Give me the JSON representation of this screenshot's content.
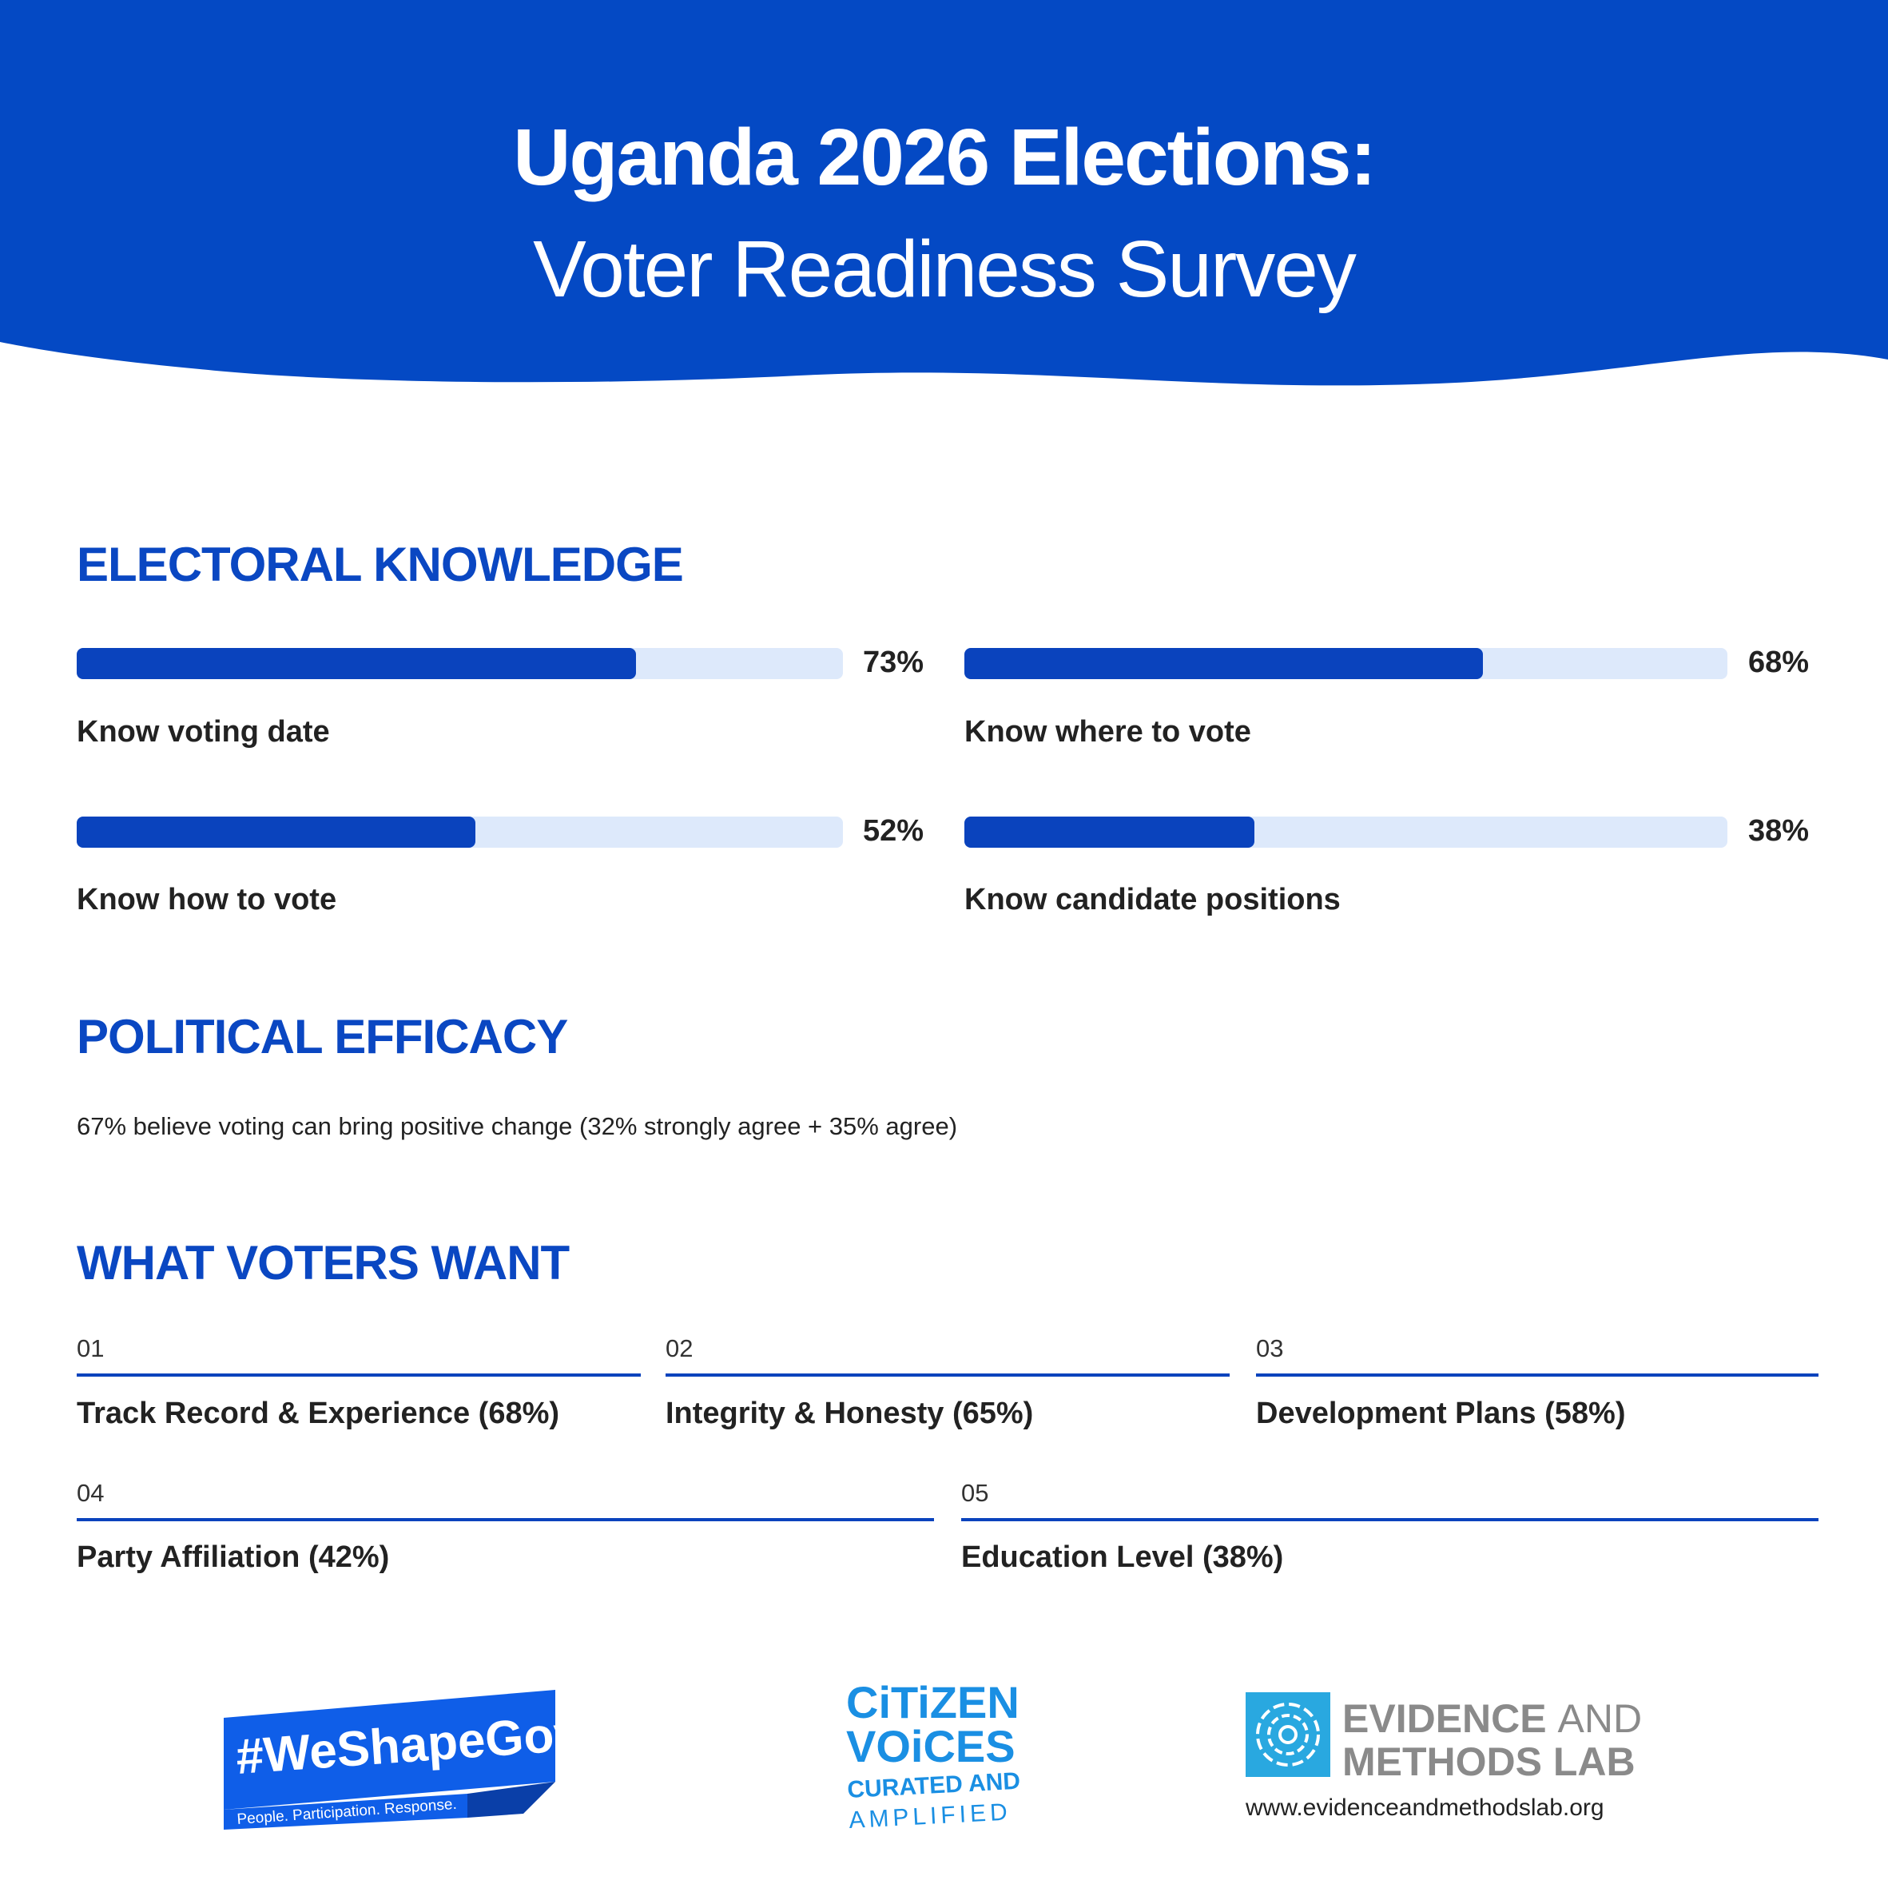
{
  "header": {
    "title": "Uganda 2026 Elections:",
    "subtitle": "Voter Readiness Survey"
  },
  "knowledge": {
    "heading": "ELECTORAL KNOWLEDGE",
    "items": [
      {
        "label": "Know voting date",
        "value": 73,
        "value_label": "73%"
      },
      {
        "label": "Know where to vote",
        "value": 68,
        "value_label": "68%"
      },
      {
        "label": "Know how to vote",
        "value": 52,
        "value_label": "52%"
      },
      {
        "label": "Know candidate positions",
        "value": 38,
        "value_label": "38%"
      }
    ]
  },
  "efficacy": {
    "heading": "POLITICAL EFFICACY",
    "text": "67% believe voting can bring positive change (32% strongly agree + 35% agree)"
  },
  "wants": {
    "heading": "WHAT VOTERS WANT",
    "items": [
      {
        "number": "01",
        "label": "Track Record & Experience (68%)"
      },
      {
        "number": "02",
        "label": "Integrity & Honesty (65%)"
      },
      {
        "number": "03",
        "label": "Development Plans (58%)"
      },
      {
        "number": "04",
        "label": "Party Affiliation (42%)"
      },
      {
        "number": "05",
        "label": "Education Level (38%)"
      }
    ]
  },
  "footer": {
    "weshapegov": {
      "tag": "#WeShapeGov",
      "slogan": "People. Participation. Response."
    },
    "citizen_voices": {
      "line1": "CiTiZEN",
      "line2": "VOiCES",
      "line3": "CURATED AND",
      "line4": "AMPLIFIED"
    },
    "lab": {
      "line1": "EVIDENCE",
      "line1b": "AND",
      "line2": "METHODS LAB",
      "url": "www.evidenceandmethodslab.org"
    }
  }
}
